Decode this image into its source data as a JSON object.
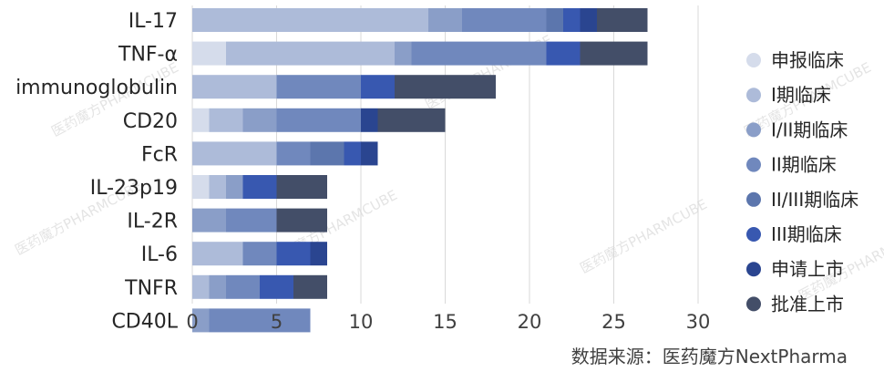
{
  "chart_data": {
    "type": "bar",
    "orientation": "horizontal",
    "stacked": true,
    "categories": [
      "IL-17",
      "TNF-α",
      "immunoglobulin",
      "CD20",
      "FcR",
      "IL-23p19",
      "IL-2R",
      "IL-6",
      "TNFR",
      "CD40L"
    ],
    "series": [
      {
        "name": "申报临床",
        "color": "#d5dceb",
        "values": [
          0,
          2,
          0,
          1,
          0,
          1,
          0,
          0,
          0,
          0
        ]
      },
      {
        "name": "I期临床",
        "color": "#adbbd9",
        "values": [
          14,
          10,
          5,
          2,
          5,
          1,
          0,
          3,
          1,
          0
        ]
      },
      {
        "name": "I/II期临床",
        "color": "#8a9ec8",
        "values": [
          2,
          1,
          0,
          2,
          0,
          1,
          2,
          0,
          1,
          1
        ]
      },
      {
        "name": "II期临床",
        "color": "#7088bd",
        "values": [
          5,
          8,
          5,
          5,
          2,
          0,
          3,
          2,
          2,
          6
        ]
      },
      {
        "name": "II/III期临床",
        "color": "#5c76ad",
        "values": [
          1,
          0,
          0,
          0,
          2,
          0,
          0,
          0,
          0,
          0
        ]
      },
      {
        "name": "III期临床",
        "color": "#3858b0",
        "values": [
          1,
          2,
          2,
          0,
          1,
          2,
          0,
          2,
          2,
          0
        ]
      },
      {
        "name": "申请上市",
        "color": "#2a4590",
        "values": [
          1,
          0,
          0,
          1,
          1,
          0,
          0,
          1,
          0,
          0
        ]
      },
      {
        "name": "批准上市",
        "color": "#434e68",
        "values": [
          3,
          4,
          6,
          4,
          0,
          3,
          3,
          0,
          2,
          0
        ]
      }
    ],
    "xlim": [
      0,
      30
    ],
    "xticks": [
      0,
      5,
      10,
      15,
      20,
      25,
      30
    ],
    "grid": true,
    "legend": "right",
    "title": "",
    "xlabel": "",
    "ylabel": ""
  },
  "watermark": "医药魔方PHARMCUBE",
  "source_note": "数据来源：医药魔方NextPharma"
}
